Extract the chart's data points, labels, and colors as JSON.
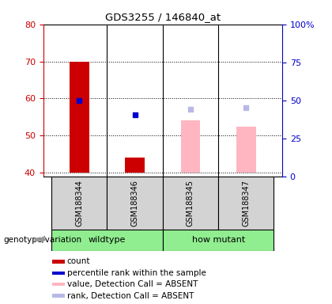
{
  "title": "GDS3255 / 146840_at",
  "samples": [
    "GSM188344",
    "GSM188346",
    "GSM188345",
    "GSM188347"
  ],
  "ylim_left": [
    39,
    80
  ],
  "ylim_right": [
    0,
    100
  ],
  "yticks_left": [
    40,
    50,
    60,
    70,
    80
  ],
  "yticks_right": [
    0,
    25,
    50,
    75,
    100
  ],
  "ytick_labels_right": [
    "0",
    "25",
    "50",
    "75",
    "100%"
  ],
  "bar_bottom": 40,
  "bars": [
    {
      "sample": "GSM188344",
      "value": 70,
      "color": "#cc0000"
    },
    {
      "sample": "GSM188346",
      "value": 44,
      "color": "#cc0000"
    }
  ],
  "dots": [
    {
      "sample": "GSM188344",
      "value": 59.5,
      "color": "#0000cc"
    },
    {
      "sample": "GSM188346",
      "value": 55.5,
      "color": "#0000cc"
    }
  ],
  "absent_bars": [
    {
      "sample": "GSM188345",
      "value": 54,
      "color": "#FFB6C1"
    },
    {
      "sample": "GSM188347",
      "value": 52.5,
      "color": "#FFB6C1"
    }
  ],
  "absent_dots": [
    {
      "sample": "GSM188345",
      "value": 57,
      "color": "#b8b8e8"
    },
    {
      "sample": "GSM188347",
      "value": 57.5,
      "color": "#b8b8e8"
    }
  ],
  "groups": [
    {
      "name": "wildtype",
      "start": 0,
      "end": 2
    },
    {
      "name": "how mutant",
      "start": 2,
      "end": 4
    }
  ],
  "legend_items": [
    {
      "label": "count",
      "color": "#cc0000"
    },
    {
      "label": "percentile rank within the sample",
      "color": "#0000cc"
    },
    {
      "label": "value, Detection Call = ABSENT",
      "color": "#FFB6C1"
    },
    {
      "label": "rank, Detection Call = ABSENT",
      "color": "#b8b8e8"
    }
  ],
  "bg_color": "#d3d3d3",
  "left_tick_color": "#cc0000",
  "right_tick_color": "#0000cc",
  "genotype_label": "genotype/variation",
  "bar_width": 0.35,
  "dot_size": 5
}
